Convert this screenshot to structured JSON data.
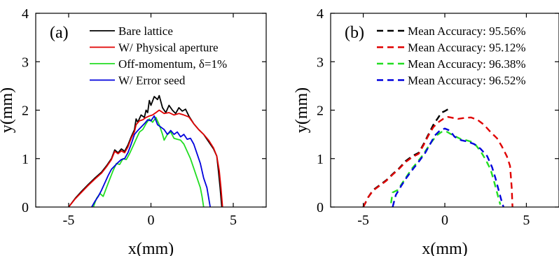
{
  "chart_data": [
    {
      "type": "line",
      "panel_label": "(a)",
      "xlabel": "x(mm)",
      "ylabel": "y(mm)",
      "xlim": [
        -7,
        7
      ],
      "ylim": [
        0,
        4
      ],
      "xticks": [
        -5,
        0,
        5
      ],
      "yticks": [
        0,
        1,
        2,
        3,
        4
      ],
      "grid": false,
      "legend_position": "top-right",
      "series": [
        {
          "name": "Bare lattice",
          "color": "#000000",
          "dash": "solid",
          "points": [
            [
              -5.0,
              0
            ],
            [
              -4.6,
              0.18
            ],
            [
              -4.2,
              0.33
            ],
            [
              -3.8,
              0.47
            ],
            [
              -3.4,
              0.6
            ],
            [
              -3.0,
              0.72
            ],
            [
              -2.7,
              0.85
            ],
            [
              -2.4,
              1.0
            ],
            [
              -2.2,
              1.18
            ],
            [
              -2.0,
              1.12
            ],
            [
              -1.8,
              1.2
            ],
            [
              -1.6,
              1.15
            ],
            [
              -1.4,
              1.28
            ],
            [
              -1.2,
              1.45
            ],
            [
              -1.0,
              1.6
            ],
            [
              -0.9,
              1.82
            ],
            [
              -0.8,
              1.75
            ],
            [
              -0.6,
              1.9
            ],
            [
              -0.4,
              1.85
            ],
            [
              -0.3,
              2.0
            ],
            [
              -0.2,
              1.95
            ],
            [
              -0.1,
              2.2
            ],
            [
              0.0,
              2.1
            ],
            [
              0.2,
              2.28
            ],
            [
              0.4,
              2.22
            ],
            [
              0.5,
              2.3
            ],
            [
              0.7,
              2.05
            ],
            [
              0.9,
              1.95
            ],
            [
              1.1,
              2.1
            ],
            [
              1.3,
              2.0
            ],
            [
              1.5,
              1.93
            ],
            [
              1.7,
              2.05
            ],
            [
              1.9,
              1.98
            ],
            [
              2.1,
              2.02
            ],
            [
              2.3,
              1.88
            ],
            [
              2.6,
              1.72
            ],
            [
              2.9,
              1.6
            ],
            [
              3.2,
              1.5
            ],
            [
              3.5,
              1.35
            ],
            [
              3.8,
              1.2
            ],
            [
              4.0,
              1.05
            ],
            [
              4.1,
              0.75
            ],
            [
              4.2,
              0.4
            ],
            [
              4.3,
              0
            ]
          ]
        },
        {
          "name": "W/ Physical aperture",
          "color": "#e00000",
          "dash": "solid",
          "points": [
            [
              -5.0,
              0
            ],
            [
              -4.6,
              0.17
            ],
            [
              -4.2,
              0.31
            ],
            [
              -3.8,
              0.45
            ],
            [
              -3.4,
              0.58
            ],
            [
              -3.0,
              0.7
            ],
            [
              -2.7,
              0.83
            ],
            [
              -2.4,
              0.98
            ],
            [
              -2.2,
              1.15
            ],
            [
              -2.0,
              1.1
            ],
            [
              -1.8,
              1.16
            ],
            [
              -1.6,
              1.12
            ],
            [
              -1.4,
              1.24
            ],
            [
              -1.2,
              1.42
            ],
            [
              -1.0,
              1.56
            ],
            [
              -0.9,
              1.7
            ],
            [
              -0.7,
              1.78
            ],
            [
              -0.5,
              1.8
            ],
            [
              -0.3,
              1.85
            ],
            [
              -0.1,
              1.88
            ],
            [
              0.1,
              1.9
            ],
            [
              0.3,
              1.95
            ],
            [
              0.5,
              2.0
            ],
            [
              0.8,
              1.93
            ],
            [
              1.1,
              1.95
            ],
            [
              1.4,
              1.9
            ],
            [
              1.7,
              1.93
            ],
            [
              2.0,
              1.9
            ],
            [
              2.3,
              1.86
            ],
            [
              2.6,
              1.72
            ],
            [
              2.9,
              1.6
            ],
            [
              3.2,
              1.5
            ],
            [
              3.5,
              1.38
            ],
            [
              3.8,
              1.22
            ],
            [
              4.0,
              1.05
            ],
            [
              4.15,
              0.75
            ],
            [
              4.25,
              0.4
            ],
            [
              4.35,
              0
            ]
          ]
        },
        {
          "name": "Off-momentum, δ=1%",
          "color": "#22dd22",
          "dash": "solid",
          "points": [
            [
              -3.5,
              0
            ],
            [
              -3.3,
              0.18
            ],
            [
              -3.1,
              0.28
            ],
            [
              -2.9,
              0.22
            ],
            [
              -2.7,
              0.4
            ],
            [
              -2.5,
              0.58
            ],
            [
              -2.3,
              0.75
            ],
            [
              -2.1,
              0.9
            ],
            [
              -1.9,
              0.88
            ],
            [
              -1.7,
              1.0
            ],
            [
              -1.5,
              0.98
            ],
            [
              -1.3,
              1.1
            ],
            [
              -1.1,
              1.25
            ],
            [
              -0.9,
              1.4
            ],
            [
              -0.7,
              1.55
            ],
            [
              -0.5,
              1.6
            ],
            [
              -0.3,
              1.72
            ],
            [
              -0.1,
              1.82
            ],
            [
              0.1,
              1.75
            ],
            [
              0.3,
              1.85
            ],
            [
              0.5,
              1.7
            ],
            [
              0.7,
              1.5
            ],
            [
              0.8,
              1.38
            ],
            [
              1.0,
              1.5
            ],
            [
              1.2,
              1.55
            ],
            [
              1.4,
              1.42
            ],
            [
              1.6,
              1.4
            ],
            [
              1.8,
              1.38
            ],
            [
              2.0,
              1.3
            ],
            [
              2.2,
              1.15
            ],
            [
              2.4,
              1.0
            ],
            [
              2.6,
              0.8
            ],
            [
              2.8,
              0.6
            ],
            [
              3.0,
              0.4
            ],
            [
              3.1,
              0.22
            ],
            [
              3.2,
              0
            ]
          ]
        },
        {
          "name": "W/ Error seed",
          "color": "#0000dd",
          "dash": "solid",
          "points": [
            [
              -3.6,
              0
            ],
            [
              -3.4,
              0.12
            ],
            [
              -3.2,
              0.22
            ],
            [
              -3.0,
              0.35
            ],
            [
              -2.8,
              0.5
            ],
            [
              -2.6,
              0.65
            ],
            [
              -2.4,
              0.78
            ],
            [
              -2.2,
              0.85
            ],
            [
              -2.0,
              0.92
            ],
            [
              -1.8,
              0.98
            ],
            [
              -1.6,
              1.0
            ],
            [
              -1.4,
              1.12
            ],
            [
              -1.2,
              1.3
            ],
            [
              -1.0,
              1.5
            ],
            [
              -0.8,
              1.58
            ],
            [
              -0.6,
              1.65
            ],
            [
              -0.4,
              1.72
            ],
            [
              -0.2,
              1.8
            ],
            [
              0.0,
              1.78
            ],
            [
              0.2,
              1.88
            ],
            [
              0.4,
              1.7
            ],
            [
              0.6,
              1.65
            ],
            [
              0.8,
              1.6
            ],
            [
              1.0,
              1.5
            ],
            [
              1.2,
              1.58
            ],
            [
              1.4,
              1.5
            ],
            [
              1.6,
              1.55
            ],
            [
              1.8,
              1.45
            ],
            [
              2.0,
              1.5
            ],
            [
              2.2,
              1.4
            ],
            [
              2.4,
              1.42
            ],
            [
              2.6,
              1.3
            ],
            [
              2.8,
              1.1
            ],
            [
              3.0,
              0.9
            ],
            [
              3.2,
              0.6
            ],
            [
              3.4,
              0.4
            ],
            [
              3.6,
              0
            ]
          ]
        }
      ]
    },
    {
      "type": "line",
      "panel_label": "(b)",
      "xlabel": "x(mm)",
      "ylabel": "y(mm)",
      "xlim": [
        -7,
        7
      ],
      "ylim": [
        0,
        4
      ],
      "xticks": [
        -5,
        0,
        5
      ],
      "yticks": [
        0,
        1,
        2,
        3,
        4
      ],
      "grid": false,
      "legend_position": "top-right",
      "series": [
        {
          "name": "Mean Accuracy: 95.56%",
          "color": "#000000",
          "dash": "dashed",
          "points": [
            [
              -5.0,
              0
            ],
            [
              -4.7,
              0.2
            ],
            [
              -4.4,
              0.35
            ],
            [
              -4.0,
              0.45
            ],
            [
              -3.6,
              0.55
            ],
            [
              -3.2,
              0.68
            ],
            [
              -2.8,
              0.8
            ],
            [
              -2.4,
              0.95
            ],
            [
              -2.0,
              1.05
            ],
            [
              -1.6,
              1.12
            ],
            [
              -1.3,
              1.3
            ],
            [
              -1.0,
              1.5
            ],
            [
              -0.7,
              1.7
            ],
            [
              -0.4,
              1.85
            ],
            [
              -0.2,
              1.95
            ],
            [
              0.0,
              1.98
            ],
            [
              0.2,
              2.02
            ],
            [
              0.4,
              2.0
            ]
          ]
        },
        {
          "name": "Mean Accuracy: 95.12%",
          "color": "#e00000",
          "dash": "dashed",
          "points": [
            [
              -5.0,
              0
            ],
            [
              -4.7,
              0.2
            ],
            [
              -4.4,
              0.34
            ],
            [
              -4.0,
              0.44
            ],
            [
              -3.6,
              0.54
            ],
            [
              -3.2,
              0.67
            ],
            [
              -2.8,
              0.79
            ],
            [
              -2.4,
              0.93
            ],
            [
              -2.0,
              1.03
            ],
            [
              -1.6,
              1.1
            ],
            [
              -1.3,
              1.28
            ],
            [
              -1.0,
              1.48
            ],
            [
              -0.7,
              1.65
            ],
            [
              -0.4,
              1.75
            ],
            [
              -0.1,
              1.82
            ],
            [
              0.2,
              1.86
            ],
            [
              0.5,
              1.84
            ],
            [
              0.8,
              1.82
            ],
            [
              1.2,
              1.84
            ],
            [
              1.6,
              1.85
            ],
            [
              2.0,
              1.8
            ],
            [
              2.4,
              1.7
            ],
            [
              2.8,
              1.55
            ],
            [
              3.2,
              1.42
            ],
            [
              3.5,
              1.25
            ],
            [
              3.8,
              1.05
            ],
            [
              4.0,
              0.85
            ],
            [
              4.1,
              0.4
            ],
            [
              4.15,
              0
            ]
          ]
        },
        {
          "name": "Mean Accuracy: 96.38%",
          "color": "#22dd22",
          "dash": "dashed",
          "points": [
            [
              -3.3,
              0.08
            ],
            [
              -3.2,
              0.3
            ],
            [
              -2.9,
              0.35
            ],
            [
              -2.6,
              0.5
            ],
            [
              -2.3,
              0.65
            ],
            [
              -2.0,
              0.8
            ],
            [
              -1.7,
              0.92
            ],
            [
              -1.4,
              1.05
            ],
            [
              -1.1,
              1.2
            ],
            [
              -0.8,
              1.35
            ],
            [
              -0.5,
              1.48
            ],
            [
              -0.2,
              1.55
            ],
            [
              0.1,
              1.56
            ],
            [
              0.4,
              1.5
            ],
            [
              0.7,
              1.45
            ],
            [
              1.0,
              1.4
            ],
            [
              1.3,
              1.38
            ],
            [
              1.6,
              1.35
            ],
            [
              1.9,
              1.28
            ],
            [
              2.2,
              1.15
            ],
            [
              2.5,
              0.98
            ],
            [
              2.8,
              0.78
            ],
            [
              3.0,
              0.55
            ],
            [
              3.2,
              0.3
            ],
            [
              3.4,
              0.05
            ]
          ]
        },
        {
          "name": "Mean Accuracy: 96.52%",
          "color": "#0000dd",
          "dash": "dashed",
          "points": [
            [
              -3.2,
              0
            ],
            [
              -3.0,
              0.25
            ],
            [
              -2.7,
              0.42
            ],
            [
              -2.4,
              0.58
            ],
            [
              -2.1,
              0.72
            ],
            [
              -1.8,
              0.85
            ],
            [
              -1.5,
              0.98
            ],
            [
              -1.2,
              1.12
            ],
            [
              -0.9,
              1.3
            ],
            [
              -0.6,
              1.48
            ],
            [
              -0.3,
              1.58
            ],
            [
              0.0,
              1.62
            ],
            [
              0.3,
              1.58
            ],
            [
              0.6,
              1.45
            ],
            [
              1.0,
              1.38
            ],
            [
              1.4,
              1.35
            ],
            [
              1.8,
              1.3
            ],
            [
              2.2,
              1.2
            ],
            [
              2.6,
              1.05
            ],
            [
              2.9,
              0.82
            ],
            [
              3.1,
              0.6
            ],
            [
              3.3,
              0.35
            ],
            [
              3.5,
              0.1
            ],
            [
              3.6,
              0
            ]
          ]
        }
      ]
    }
  ]
}
